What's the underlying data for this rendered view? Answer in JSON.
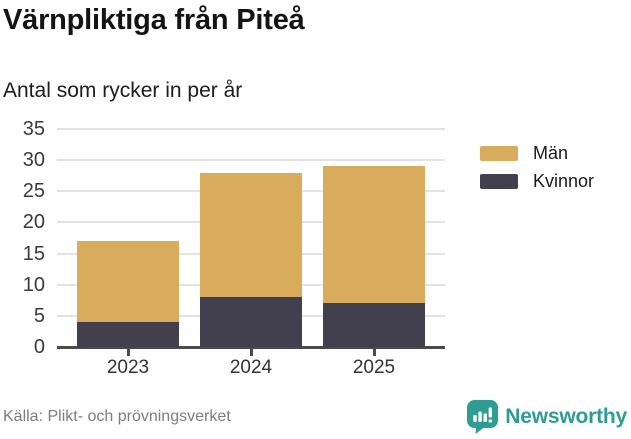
{
  "chart_data": {
    "type": "bar",
    "stacked": true,
    "title": "Värnpliktiga från Piteå",
    "subtitle": "Antal som rycker in per år",
    "categories": [
      "2023",
      "2024",
      "2025"
    ],
    "series": [
      {
        "name": "Män",
        "color": "#d9ab5c",
        "values": [
          13,
          20,
          22
        ]
      },
      {
        "name": "Kvinnor",
        "color": "#42404e",
        "values": [
          4,
          8,
          7
        ]
      }
    ],
    "stack_totals": [
      17,
      28,
      29
    ],
    "ylim": [
      0,
      35
    ],
    "yticks": [
      0,
      5,
      10,
      15,
      20,
      25,
      30,
      35
    ],
    "grid": true,
    "legend_position": "right",
    "source": "Källa: Plikt- och prövningsverket",
    "brand": "Newsworthy",
    "brand_color": "#2f9c94",
    "grid_color": "#e2e2e2",
    "axis_color": "#4a4a4a"
  }
}
